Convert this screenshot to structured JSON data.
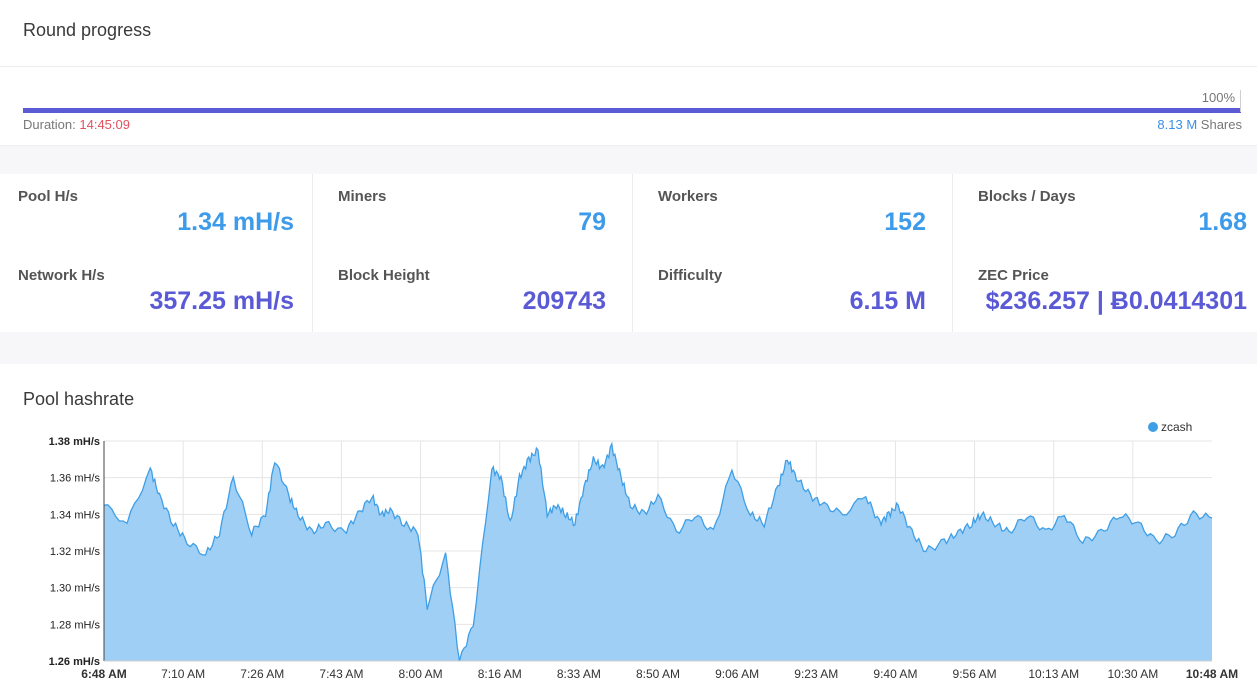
{
  "round": {
    "title": "Round progress",
    "percent_label": "100%",
    "progress": 1.0,
    "duration_label": "Duration:",
    "duration_value": "14:45:09",
    "shares_value": "8.13 M",
    "shares_label": "Shares"
  },
  "stats": [
    {
      "label1": "Pool H/s",
      "value1": "1.34 mH/s",
      "label2": "Network H/s",
      "value2": "357.25 mH/s"
    },
    {
      "label1": "Miners",
      "value1": "79",
      "label2": "Block Height",
      "value2": "209743"
    },
    {
      "label1": "Workers",
      "value1": "152",
      "label2": "Difficulty",
      "value2": "6.15 M"
    },
    {
      "label1": "Blocks / Days",
      "value1": "1.68",
      "label2": "ZEC Price",
      "value2": "$236.257 | Ƀ0.0414301"
    }
  ],
  "chart": {
    "title": "Pool hashrate"
  },
  "colors": {
    "accent_light": "#3d9be9",
    "accent_dark": "#5a5ad6",
    "progress": "#5b5bd6",
    "duration": "#e2515d",
    "area_fill": "#9fcff5",
    "area_line": "#3e9fe6"
  },
  "chart_data": {
    "type": "area",
    "legend": {
      "entries": [
        "zcash"
      ],
      "position": "top-right"
    },
    "yticks": [
      "1.26 mH/s",
      "1.28 mH/s",
      "1.30 mH/s",
      "1.32 mH/s",
      "1.34 mH/s",
      "1.36 mH/s",
      "1.38 mH/s"
    ],
    "ylim": [
      1.26,
      1.38
    ],
    "xticks": [
      "6:48 AM",
      "7:10 AM",
      "7:26 AM",
      "7:43 AM",
      "8:00 AM",
      "8:16 AM",
      "8:33 AM",
      "8:50 AM",
      "9:06 AM",
      "9:23 AM",
      "9:40 AM",
      "9:56 AM",
      "10:13 AM",
      "10:30 AM",
      "10:48 AM"
    ],
    "grid": true,
    "series": [
      {
        "name": "zcash",
        "x_minutes_from_start": [
          0,
          5,
          10,
          12,
          15,
          18,
          22,
          25,
          28,
          32,
          35,
          37,
          40,
          42,
          45,
          48,
          52,
          55,
          58,
          60,
          62,
          65,
          68,
          70,
          74,
          77,
          80,
          84,
          86,
          88,
          90,
          92,
          94,
          96,
          98,
          100,
          102,
          104,
          106,
          108,
          110,
          112,
          114,
          117,
          120,
          124,
          128,
          132,
          136,
          140,
          143,
          146,
          148,
          150,
          153,
          156,
          160,
          165,
          168,
          170,
          172,
          175,
          178,
          182,
          185,
          188,
          190,
          193,
          196,
          200,
          204,
          208,
          212,
          216,
          220,
          224,
          228,
          232,
          236,
          240
        ],
        "values": [
          1.345,
          1.335,
          1.365,
          1.35,
          1.335,
          1.325,
          1.318,
          1.33,
          1.36,
          1.33,
          1.34,
          1.37,
          1.35,
          1.34,
          1.33,
          1.335,
          1.33,
          1.34,
          1.35,
          1.34,
          1.342,
          1.335,
          1.33,
          1.29,
          1.318,
          1.26,
          1.28,
          1.365,
          1.36,
          1.335,
          1.36,
          1.37,
          1.375,
          1.34,
          1.345,
          1.34,
          1.335,
          1.355,
          1.37,
          1.365,
          1.377,
          1.36,
          1.345,
          1.34,
          1.35,
          1.33,
          1.34,
          1.33,
          1.365,
          1.34,
          1.335,
          1.355,
          1.37,
          1.36,
          1.35,
          1.345,
          1.34,
          1.35,
          1.335,
          1.34,
          1.345,
          1.33,
          1.32,
          1.325,
          1.33,
          1.335,
          1.34,
          1.335,
          1.33,
          1.34,
          1.33,
          1.34,
          1.325,
          1.33,
          1.34,
          1.335,
          1.325,
          1.33,
          1.34,
          1.338
        ]
      }
    ]
  }
}
